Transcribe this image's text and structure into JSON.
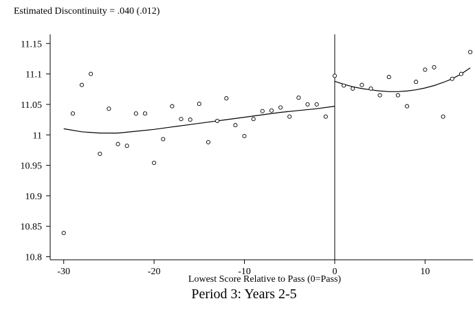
{
  "chart_data": {
    "type": "scatter",
    "title": "Estimated Discontinuity = .040 (.012)",
    "xlabel": "Lowest Score Relative to Pass (0=Pass)",
    "ylabel": "",
    "caption": "Period 3: Years 2-5",
    "xlim": [
      -31.5,
      15.3
    ],
    "ylim": [
      10.795,
      11.165
    ],
    "x_ticks": [
      -30,
      -20,
      -10,
      0,
      10
    ],
    "x_tick_labels": [
      "-30",
      "-20",
      "-10",
      "0",
      "10"
    ],
    "y_ticks": [
      10.8,
      10.85,
      10.9,
      10.95,
      11.0,
      11.05,
      11.1,
      11.15
    ],
    "y_tick_labels": [
      "10.8",
      "10.85",
      "10.9",
      "10.95",
      "11",
      "11.05",
      "11.1",
      "11.15"
    ],
    "grid": false,
    "cutoff_x": 0,
    "series": [
      {
        "marker": "hollow-circle",
        "x": [
          -30,
          -29,
          -28,
          -27,
          -26,
          -25,
          -24,
          -23,
          -22,
          -21,
          -20,
          -19,
          -18,
          -17,
          -16,
          -15,
          -14,
          -13,
          -12,
          -11,
          -10,
          -9,
          -8,
          -7,
          -6,
          -5,
          -4,
          -3,
          -2,
          -1,
          0,
          1,
          2,
          3,
          4,
          5,
          6,
          7,
          8,
          9,
          10,
          11,
          12,
          13,
          14,
          15
        ],
        "y": [
          10.839,
          11.035,
          11.082,
          11.1,
          10.969,
          11.043,
          10.985,
          10.982,
          11.035,
          11.035,
          10.954,
          10.993,
          11.047,
          11.026,
          11.025,
          11.051,
          10.988,
          11.023,
          11.06,
          11.016,
          10.998,
          11.026,
          11.039,
          11.04,
          11.045,
          11.03,
          11.061,
          11.05,
          11.05,
          11.03,
          11.097,
          11.081,
          11.076,
          11.082,
          11.076,
          11.065,
          11.095,
          11.065,
          11.047,
          11.087,
          11.107,
          11.111,
          11.03,
          11.092,
          11.1,
          11.136
        ]
      },
      {
        "style": "line",
        "segment": "left-fit",
        "x": [
          -30,
          -28,
          -26,
          -24,
          -22,
          -20,
          -18,
          -16,
          -14,
          -12,
          -10,
          -8,
          -6,
          -4,
          -2,
          0
        ],
        "y": [
          11.01,
          11.005,
          11.003,
          11.003,
          11.006,
          11.009,
          11.013,
          11.017,
          11.021,
          11.025,
          11.029,
          11.033,
          11.037,
          11.04,
          11.043,
          11.047
        ]
      },
      {
        "style": "line",
        "segment": "right-fit",
        "x": [
          0,
          1,
          2,
          3,
          4,
          5,
          6,
          7,
          8,
          9,
          10,
          11,
          12,
          13,
          14,
          15
        ],
        "y": [
          11.088,
          11.083,
          11.079,
          11.076,
          11.074,
          11.072,
          11.071,
          11.071,
          11.072,
          11.074,
          11.077,
          11.081,
          11.086,
          11.092,
          11.1,
          11.11
        ]
      }
    ]
  }
}
